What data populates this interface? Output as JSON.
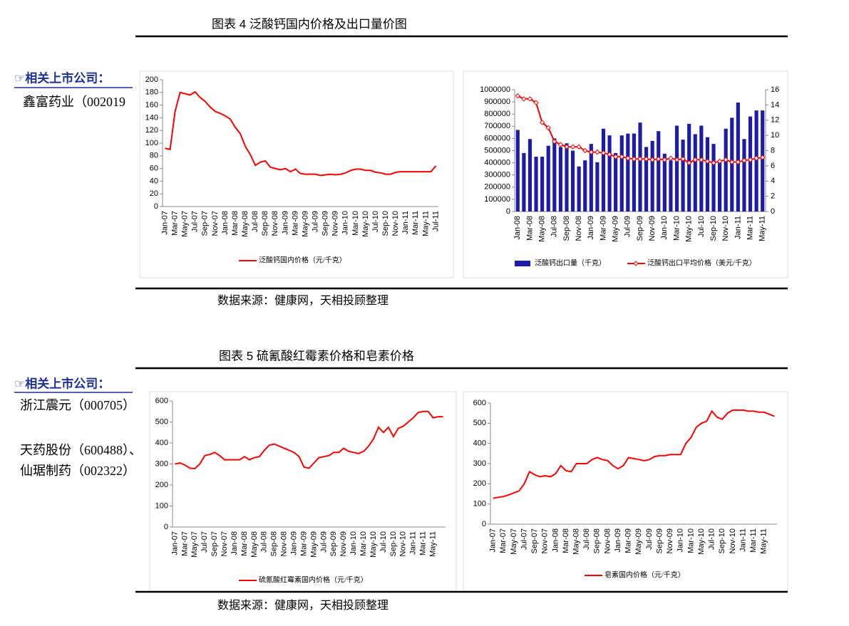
{
  "figures": [
    {
      "title": "图表 4 泛酸钙国内价格及出口量价图",
      "related_label": "☞相关上市公司：",
      "companies": [
        "鑫富药业（002019"
      ],
      "source": "数据来源：健康网，天相投顾整理"
    },
    {
      "title": "图表 5 硫氰酸红霉素价格和皂素价格",
      "related_label": "☞相关上市公司：",
      "companies": [
        "浙江震元（000705）",
        "天药股份（600488）、",
        "仙琚制药（002322）"
      ],
      "source": "数据来源：健康网，天相投顾整理"
    }
  ],
  "chart_data": [
    {
      "type": "line",
      "categories": [
        "Jan-07",
        null,
        "Mar-07",
        null,
        "May-07",
        null,
        "Jul-07",
        null,
        "Sep-07",
        null,
        "Nov-07",
        null,
        "Jan-08",
        null,
        "Mar-08",
        null,
        "May-08",
        null,
        "Jul-08",
        null,
        "Sep-08",
        null,
        "Nov-08",
        null,
        "Jan-09",
        null,
        "Mar-09",
        null,
        "May-09",
        null,
        "Jul-09",
        null,
        "Sep-09",
        null,
        "Nov-09",
        null,
        "Jan-10",
        null,
        "Mar-10",
        null,
        "May-10",
        null,
        "Jul-10",
        null,
        "Sep-10",
        null,
        "Nov-10",
        null,
        "Jan-11",
        null,
        "Mar-11",
        null,
        "May-11",
        null,
        "Jul-11"
      ],
      "series": [
        {
          "name": "泛酸钙国内价格（元/千克）",
          "color": "#ff0000",
          "values": [
            92,
            90,
            150,
            180,
            178,
            176,
            181,
            172,
            166,
            157,
            150,
            147,
            143,
            138,
            125,
            115,
            95,
            82,
            65,
            70,
            72,
            62,
            60,
            58,
            60,
            55,
            59,
            52,
            51,
            51,
            51,
            49,
            50,
            51,
            50,
            51,
            53,
            57,
            59,
            59,
            57,
            57,
            54,
            53,
            51,
            51,
            54,
            55,
            55,
            55,
            55,
            55,
            55,
            55,
            64
          ]
        }
      ],
      "ylim": [
        0,
        200
      ],
      "yticks": [
        0,
        20,
        40,
        60,
        80,
        100,
        120,
        140,
        160,
        180,
        200
      ]
    },
    {
      "type": "bar",
      "categories": [
        "Jan-08",
        null,
        "Mar-08",
        null,
        "May-08",
        null,
        "Jul-08",
        null,
        "Sep-08",
        null,
        "Nov-08",
        null,
        "Jan-09",
        null,
        "Mar-09",
        null,
        "May-09",
        null,
        "Jul-09",
        null,
        "Sep-09",
        null,
        "Nov-09",
        null,
        "Jan-10",
        null,
        "Mar-10",
        null,
        "May-10",
        null,
        "Jul-10",
        null,
        "Sep-10",
        null,
        "Nov-10",
        null,
        "Jan-11",
        null,
        "Mar-11",
        null,
        "May-11"
      ],
      "series": [
        {
          "name": "泛酸钙出口量（千克）",
          "color": "#1c1ca8",
          "type": "bar",
          "values": [
            670000,
            480000,
            595000,
            450000,
            450000,
            540000,
            600000,
            530000,
            560000,
            500000,
            370000,
            420000,
            555000,
            405000,
            680000,
            625000,
            480000,
            625000,
            640000,
            640000,
            730000,
            530000,
            580000,
            660000,
            475000,
            420000,
            705000,
            590000,
            720000,
            635000,
            705000,
            610000,
            555000,
            420000,
            680000,
            770000,
            895000,
            595000,
            780000,
            830000,
            830000
          ]
        },
        {
          "name": "泛酸钙出口平均价格（美元/千克）",
          "color": "#ff0000",
          "type": "line",
          "axis": "y2",
          "marker": "diamond",
          "values": [
            15.2,
            14.8,
            14.8,
            14.3,
            11.7,
            11.0,
            9.2,
            8.8,
            8.5,
            8.5,
            8.5,
            8.0,
            7.8,
            7.8,
            7.7,
            7.5,
            7.2,
            7.2,
            7.0,
            6.9,
            6.9,
            6.9,
            6.8,
            6.9,
            6.8,
            7.0,
            6.8,
            6.9,
            6.4,
            6.8,
            6.8,
            6.6,
            6.4,
            6.6,
            6.8,
            6.5,
            6.5,
            6.7,
            6.8,
            7.0,
            7.1
          ]
        }
      ],
      "ylim": [
        0,
        1000000
      ],
      "yticks": [
        0,
        100000,
        200000,
        300000,
        400000,
        500000,
        600000,
        700000,
        800000,
        900000,
        1000000
      ],
      "y2lim": [
        0,
        16
      ],
      "y2ticks": [
        0,
        2,
        4,
        6,
        8,
        10,
        12,
        14,
        16
      ]
    },
    {
      "type": "line",
      "categories": [
        "Jan-07",
        null,
        "Mar-07",
        null,
        "May-07",
        null,
        "Jul-07",
        null,
        "Sep-07",
        null,
        "Nov-07",
        null,
        "Jan-08",
        null,
        "Mar-08",
        null,
        "May-08",
        null,
        "Jul-08",
        null,
        "Sep-08",
        null,
        "Nov-08",
        null,
        "Jan-09",
        null,
        "Mar-09",
        null,
        "May-09",
        null,
        "Jul-09",
        null,
        "Sep-09",
        null,
        "Nov-09",
        null,
        "Jan-10",
        null,
        "Mar-10",
        null,
        "May-10",
        null,
        "Jul-10",
        null,
        "Sep-10",
        null,
        "Nov-10",
        null,
        "Jan-11",
        null,
        "Mar-11",
        null,
        "May-11",
        null,
        null
      ],
      "series": [
        {
          "name": "硫氰酸红霉素国内价格（元/千克）",
          "color": "#ff0000",
          "values": [
            300,
            305,
            295,
            280,
            278,
            300,
            340,
            345,
            355,
            340,
            320,
            320,
            320,
            320,
            335,
            320,
            330,
            335,
            365,
            390,
            395,
            385,
            375,
            365,
            355,
            335,
            285,
            280,
            305,
            330,
            335,
            340,
            355,
            355,
            375,
            360,
            355,
            350,
            360,
            385,
            420,
            475,
            450,
            475,
            430,
            470,
            480,
            500,
            520,
            545,
            550,
            550,
            520,
            525,
            525
          ]
        }
      ],
      "ylim": [
        0,
        600
      ],
      "yticks": [
        0,
        100,
        200,
        300,
        400,
        500,
        600
      ]
    },
    {
      "type": "line",
      "categories": [
        "Jan-07",
        null,
        "Mar-07",
        null,
        "May-07",
        null,
        "Jul-07",
        null,
        "Sep-07",
        null,
        "Nov-07",
        null,
        "Jan-08",
        null,
        "Mar-08",
        null,
        "May-08",
        null,
        "Jul-08",
        null,
        "Sep-08",
        null,
        "Nov-08",
        null,
        "Jan-09",
        null,
        "Mar-09",
        null,
        "May-09",
        null,
        "Jul-09",
        null,
        "Sep-09",
        null,
        "Nov-09",
        null,
        "Jan-10",
        null,
        "Mar-10",
        null,
        "May-10",
        null,
        "Jul-10",
        null,
        "Sep-10",
        null,
        "Nov-10",
        null,
        "Jan-11",
        null,
        "Mar-11",
        null,
        "May-11",
        null,
        null
      ],
      "series": [
        {
          "name": "皂素国内价格（元/千克）",
          "color": "#ff0000",
          "values": [
            128,
            133,
            137,
            145,
            155,
            165,
            200,
            260,
            245,
            235,
            240,
            235,
            250,
            290,
            265,
            260,
            300,
            300,
            300,
            320,
            330,
            320,
            315,
            290,
            275,
            290,
            330,
            325,
            320,
            315,
            320,
            335,
            340,
            340,
            345,
            345,
            345,
            400,
            430,
            480,
            500,
            510,
            560,
            530,
            520,
            550,
            565,
            565,
            565,
            560,
            560,
            555,
            555,
            545,
            535
          ]
        }
      ],
      "ylim": [
        0,
        600
      ],
      "yticks": [
        0,
        100,
        200,
        300,
        400,
        500,
        600
      ]
    }
  ]
}
